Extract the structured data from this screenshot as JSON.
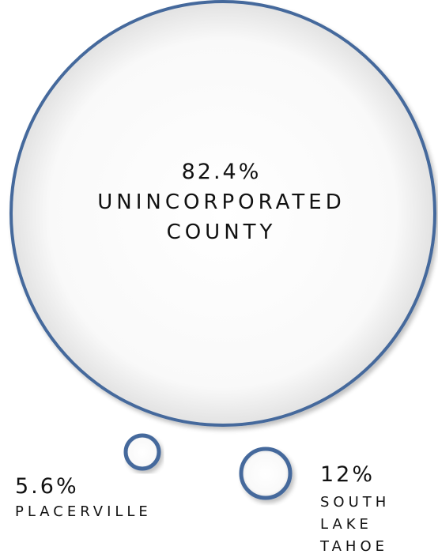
{
  "chart_data": {
    "type": "bubble",
    "items": [
      {
        "name": "UNINCORPORATED COUNTY",
        "value": 82.4,
        "value_label": "82.4%",
        "label_lines": [
          "UNINCORPORATED",
          "COUNTY"
        ]
      },
      {
        "name": "PLACERVILLE",
        "value": 5.6,
        "value_label": "5.6%",
        "label_lines": [
          "PLACERVILLE"
        ]
      },
      {
        "name": "SOUTH LAKE TAHOE",
        "value": 12,
        "value_label": "12%",
        "label_lines": [
          "SOUTH",
          "LAKE",
          "TAHOE"
        ]
      }
    ],
    "colors": {
      "outline": "#44699c",
      "fill_center": "#ffffff",
      "fill_edge": "#e4e4e4"
    }
  }
}
